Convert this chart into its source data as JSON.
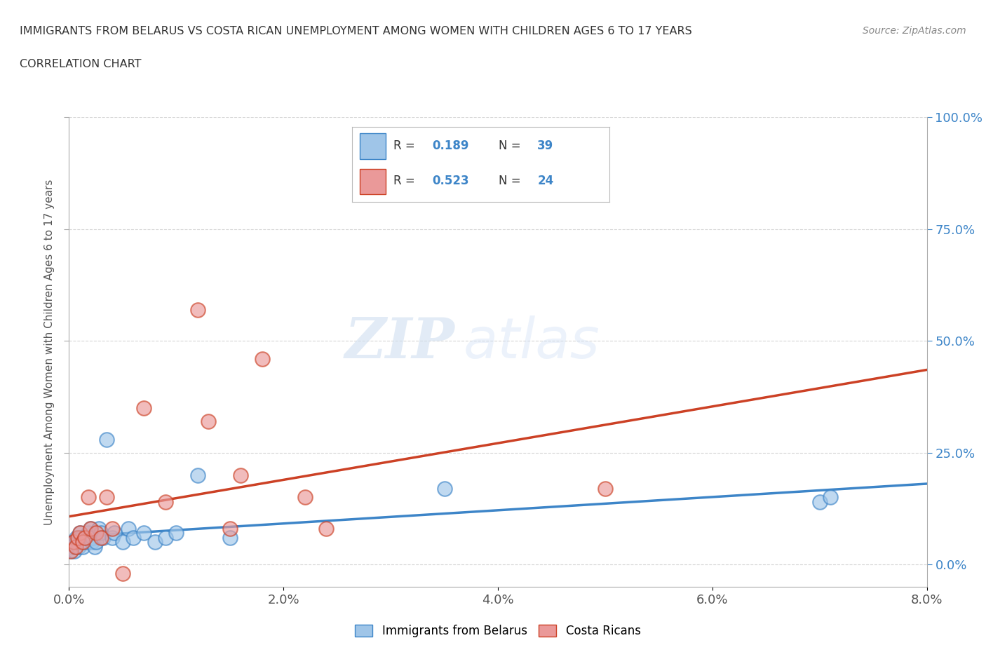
{
  "title_line1": "IMMIGRANTS FROM BELARUS VS COSTA RICAN UNEMPLOYMENT AMONG WOMEN WITH CHILDREN AGES 6 TO 17 YEARS",
  "title_line2": "CORRELATION CHART",
  "source": "Source: ZipAtlas.com",
  "ylabel_label": "Unemployment Among Women with Children Ages 6 to 17 years",
  "xlim": [
    0.0,
    0.08
  ],
  "ylim": [
    -0.05,
    1.0
  ],
  "xtick_values": [
    0.0,
    0.02,
    0.04,
    0.06,
    0.08
  ],
  "xtick_labels": [
    "0.0%",
    "2.0%",
    "4.0%",
    "6.0%",
    "8.0%"
  ],
  "ytick_values": [
    0.0,
    0.25,
    0.5,
    0.75,
    1.0
  ],
  "ytick_labels": [
    "0.0%",
    "25.0%",
    "50.0%",
    "75.0%",
    "100.0%"
  ],
  "watermark_zip": "ZIP",
  "watermark_atlas": "atlas",
  "legend_r1": "R = ",
  "legend_v1": "0.189",
  "legend_n1_label": "N = ",
  "legend_n1_val": "39",
  "legend_r2": "R = ",
  "legend_v2": "0.523",
  "legend_n2_label": "N = ",
  "legend_n2_val": "24",
  "color_blue": "#9fc5e8",
  "color_pink": "#ea9999",
  "color_blue_dark": "#3d85c8",
  "color_pink_dark": "#cc4125",
  "color_blue_line": "#3d85c8",
  "color_pink_line": "#cc4125",
  "bg_color": "#ffffff",
  "grid_color": "#cccccc",
  "belarus_x": [
    0.0002,
    0.0003,
    0.0004,
    0.0005,
    0.0006,
    0.0007,
    0.0008,
    0.0009,
    0.001,
    0.0011,
    0.0012,
    0.0013,
    0.0015,
    0.0016,
    0.0018,
    0.0019,
    0.002,
    0.0021,
    0.0022,
    0.0024,
    0.0025,
    0.0028,
    0.003,
    0.0032,
    0.0035,
    0.004,
    0.0042,
    0.005,
    0.0055,
    0.006,
    0.007,
    0.008,
    0.009,
    0.01,
    0.012,
    0.015,
    0.035,
    0.07,
    0.071
  ],
  "belarus_y": [
    0.03,
    0.04,
    0.05,
    0.03,
    0.04,
    0.06,
    0.05,
    0.04,
    0.07,
    0.06,
    0.05,
    0.04,
    0.06,
    0.05,
    0.07,
    0.06,
    0.08,
    0.05,
    0.06,
    0.04,
    0.05,
    0.08,
    0.07,
    0.06,
    0.28,
    0.06,
    0.07,
    0.05,
    0.08,
    0.06,
    0.07,
    0.05,
    0.06,
    0.07,
    0.2,
    0.06,
    0.17,
    0.14,
    0.15
  ],
  "costarica_x": [
    0.0002,
    0.0004,
    0.0006,
    0.0008,
    0.001,
    0.0013,
    0.0015,
    0.0018,
    0.002,
    0.0025,
    0.003,
    0.0035,
    0.004,
    0.005,
    0.007,
    0.009,
    0.012,
    0.013,
    0.015,
    0.016,
    0.018,
    0.022,
    0.024,
    0.05
  ],
  "costarica_y": [
    0.03,
    0.05,
    0.04,
    0.06,
    0.07,
    0.05,
    0.06,
    0.15,
    0.08,
    0.07,
    0.06,
    0.15,
    0.08,
    -0.02,
    0.35,
    0.14,
    0.57,
    0.32,
    0.08,
    0.2,
    0.46,
    0.15,
    0.08,
    0.17
  ]
}
